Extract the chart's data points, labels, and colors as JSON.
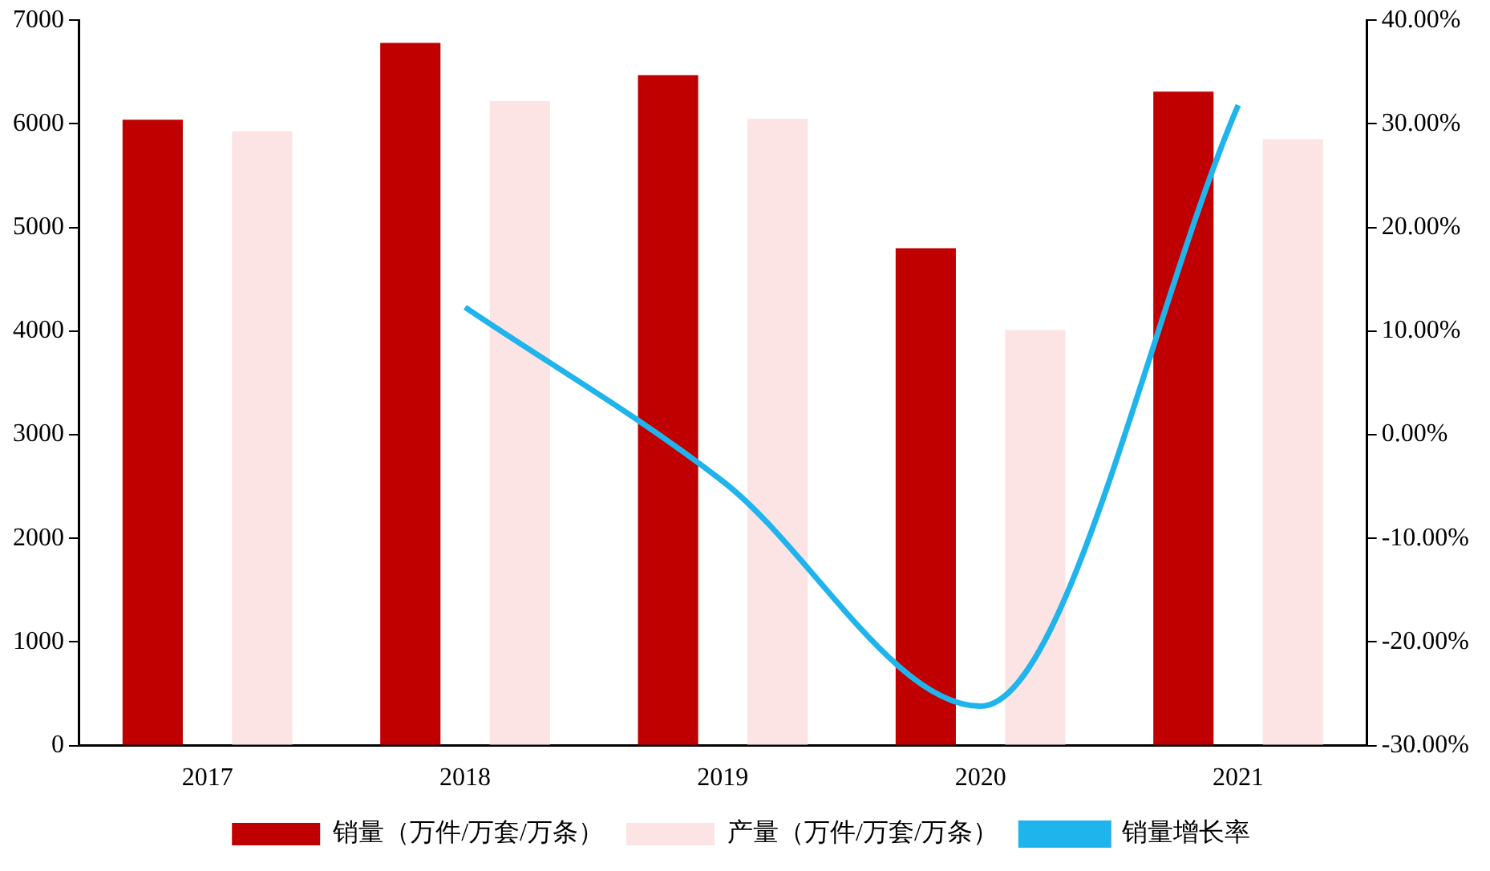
{
  "chart_data": {
    "type": "bar",
    "categories": [
      "2017",
      "2018",
      "2019",
      "2020",
      "2021"
    ],
    "series": [
      {
        "name": "销量（万件/万套/万条）",
        "color": "#c00000",
        "values": [
          6040,
          6780,
          6470,
          4800,
          6310
        ]
      },
      {
        "name": "产量（万件/万套/万条）",
        "color": "#fce4e4",
        "values": [
          5930,
          6220,
          6050,
          4010,
          5850
        ]
      },
      {
        "name": "销量增长率",
        "type": "line",
        "axis": "y2",
        "color": "#1fb4ec",
        "values": [
          null,
          12.3,
          -4.5,
          -26.2,
          31.8
        ]
      }
    ],
    "ylim": [
      0,
      7000
    ],
    "yticks": [
      0,
      1000,
      2000,
      3000,
      4000,
      5000,
      6000,
      7000
    ],
    "y2lim": [
      -30,
      40
    ],
    "y2ticks": [
      {
        "value": -30,
        "label": "-30.00%"
      },
      {
        "value": -20,
        "label": "-20.00%"
      },
      {
        "value": -10,
        "label": "-10.00%"
      },
      {
        "value": 0,
        "label": "0.00%"
      },
      {
        "value": 10,
        "label": "10.00%"
      },
      {
        "value": 20,
        "label": "20.00%"
      },
      {
        "value": 30,
        "label": "30.00%"
      },
      {
        "value": 40,
        "label": "40.00%"
      }
    ],
    "grid": false,
    "legend": "bottom"
  }
}
